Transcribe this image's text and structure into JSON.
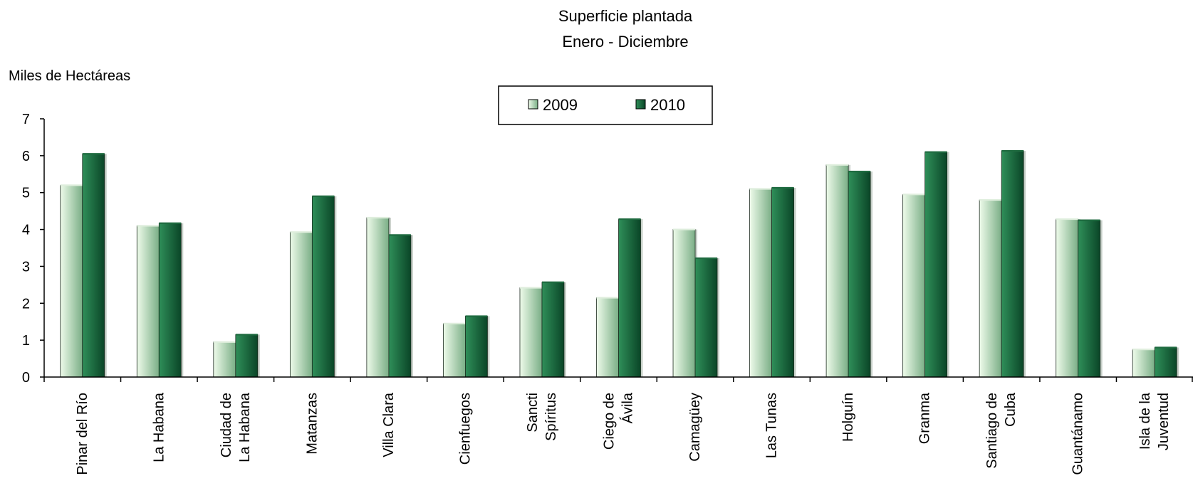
{
  "chart_data": {
    "type": "bar",
    "title": "Superficie plantada",
    "subtitle": "Enero - Diciembre",
    "xlabel": "",
    "ylabel": "Miles de Hectáreas",
    "ylim": [
      0,
      7
    ],
    "yticks": [
      0,
      1,
      2,
      3,
      4,
      5,
      6,
      7
    ],
    "grid": false,
    "legend_position": "top-center",
    "categories": [
      [
        "Pinar del Río"
      ],
      [
        "La Habana"
      ],
      [
        "Ciudad de",
        "La Habana"
      ],
      [
        "Matanzas"
      ],
      [
        "Villa Clara"
      ],
      [
        "Cienfuegos"
      ],
      [
        "Sancti",
        "Spíritus"
      ],
      [
        "Ciego de",
        "Ávila"
      ],
      [
        "Camagüey"
      ],
      [
        "Las Tunas"
      ],
      [
        "Holguín"
      ],
      [
        "Granma"
      ],
      [
        "Santiago de",
        "Cuba"
      ],
      [
        "Guantánamo"
      ],
      [
        "Isla de la",
        "Juventud"
      ]
    ],
    "series": [
      {
        "name": "2009",
        "color_light": "#e9f7e6",
        "color_dark": "#7fb38a",
        "values": [
          5.2,
          4.1,
          0.95,
          3.93,
          4.32,
          1.45,
          2.42,
          2.15,
          4.0,
          5.1,
          5.75,
          4.95,
          4.8,
          4.28,
          0.75
        ]
      },
      {
        "name": "2010",
        "color_light": "#3a9a63",
        "color_dark": "#0b4a2a",
        "values": [
          6.05,
          4.17,
          1.15,
          4.9,
          3.85,
          1.65,
          2.57,
          4.28,
          3.22,
          5.13,
          5.57,
          6.1,
          6.13,
          4.25,
          0.8
        ]
      }
    ]
  }
}
